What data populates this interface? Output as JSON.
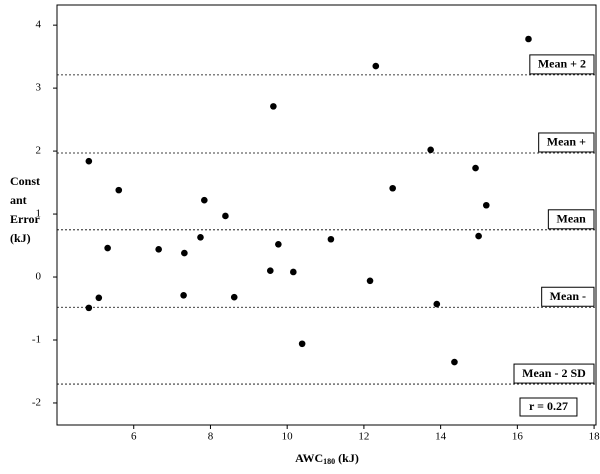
{
  "chart_data": {
    "type": "scatter",
    "y_label_lines": [
      "Const",
      "ant",
      "Error",
      "(kJ)"
    ],
    "x_label": {
      "main": "AWC",
      "sub": "180",
      "unit": " (kJ)"
    },
    "x": [
      16.29,
      12.31,
      9.64,
      13.74,
      14.91,
      4.83,
      5.61,
      12.75,
      7.84,
      15.19,
      8.39,
      7.74,
      14.99,
      11.14,
      9.77,
      5.32,
      6.65,
      7.32,
      9.56,
      10.16,
      12.16,
      7.3,
      8.62,
      5.09,
      4.83,
      13.9,
      10.39,
      14.36
    ],
    "series": [
      {
        "color": "#000000",
        "values": [
          3.78,
          3.35,
          2.71,
          2.02,
          1.73,
          1.84,
          1.38,
          1.41,
          1.22,
          1.14,
          0.97,
          0.63,
          0.65,
          0.6,
          0.52,
          0.46,
          0.44,
          0.38,
          0.1,
          0.08,
          -0.06,
          -0.29,
          -0.32,
          -0.33,
          -0.49,
          -0.43,
          -1.06,
          -1.35
        ]
      }
    ],
    "xlim": [
      4,
      18.05
    ],
    "ylim": [
      -2.35,
      4.32
    ],
    "xticks": [
      6,
      8,
      10,
      12,
      14,
      16,
      18
    ],
    "yticks": [
      -2,
      -1,
      0,
      1,
      2,
      3,
      4
    ],
    "ref_lines": [
      {
        "value": 3.21,
        "label": "Mean + 2"
      },
      {
        "value": 1.97,
        "label": "Mean +"
      },
      {
        "value": 0.75,
        "label": "Mean"
      },
      {
        "value": -0.48,
        "label": "Mean -"
      },
      {
        "value": -1.7,
        "label": "Mean - 2 SD"
      }
    ],
    "annotation": "r = 0.27"
  }
}
